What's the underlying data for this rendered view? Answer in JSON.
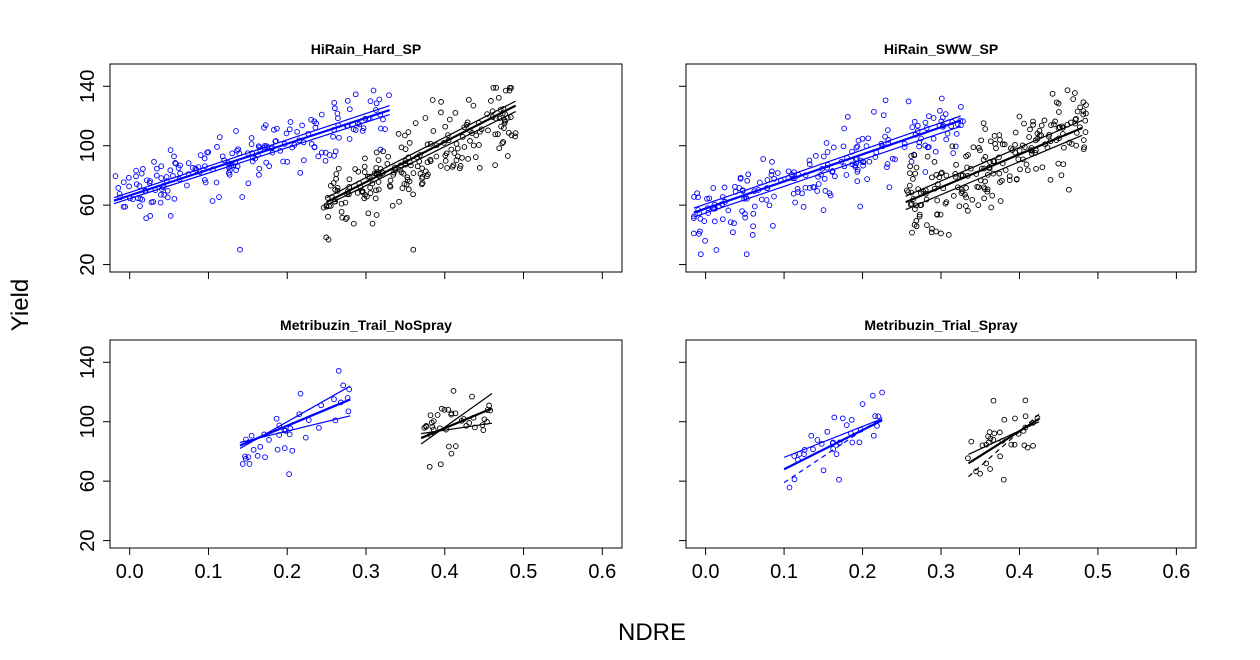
{
  "figure": {
    "xlabel": "NDRE",
    "ylabel": "Yield",
    "colors": {
      "group_low": "#0000ff",
      "group_high": "#000000"
    },
    "marker": "open-circle"
  },
  "chart_data": [
    {
      "type": "scatter",
      "title": "HiRain_Hard_SP",
      "xlim": [
        -0.025,
        0.625
      ],
      "ylim": [
        15,
        155
      ],
      "xticks": [
        "0.0",
        "0.1",
        "0.2",
        "0.3",
        "0.4",
        "0.5",
        "0.6"
      ],
      "yticks": [
        "20",
        "60",
        "100",
        "140"
      ],
      "xtick_values": [
        0.0,
        0.1,
        0.2,
        0.3,
        0.4,
        0.5,
        0.6
      ],
      "ytick_values": [
        20,
        60,
        100,
        140
      ],
      "show_xticklabels": false,
      "show_yticklabels": true,
      "grid": false,
      "series": [
        {
          "color": "#0000ff",
          "x_range": [
            -0.02,
            0.33
          ],
          "n": 190,
          "slope": 170,
          "intercept": 67,
          "noise": 10,
          "extra_points": [
            [
              0.14,
              30
            ]
          ],
          "fits": [
            {
              "x": [
                -0.02,
                0.33
              ],
              "y": [
                63,
                124
              ],
              "style": "solid",
              "width": 2.2
            },
            {
              "x": [
                -0.02,
                0.33
              ],
              "y": [
                65,
                127
              ],
              "style": "solid",
              "width": 1.2
            },
            {
              "x": [
                -0.02,
                0.33
              ],
              "y": [
                61,
                121
              ],
              "style": "solid",
              "width": 1.2
            }
          ]
        },
        {
          "color": "#000000",
          "x_range": [
            0.245,
            0.49
          ],
          "n": 210,
          "slope": 255,
          "intercept": -3,
          "noise": 12,
          "extra_points": [
            [
              0.36,
              30
            ]
          ],
          "fits": [
            {
              "x": [
                0.25,
                0.49
              ],
              "y": [
                62,
                127
              ],
              "style": "solid",
              "width": 2.2
            },
            {
              "x": [
                0.25,
                0.49
              ],
              "y": [
                60,
                123
              ],
              "style": "solid",
              "width": 1.2
            },
            {
              "x": [
                0.25,
                0.49
              ],
              "y": [
                65,
                130
              ],
              "style": "solid",
              "width": 1.2
            }
          ]
        }
      ]
    },
    {
      "type": "scatter",
      "title": "HiRain_SWW_SP",
      "xlim": [
        -0.025,
        0.625
      ],
      "ylim": [
        15,
        155
      ],
      "xticks": [
        "0.0",
        "0.1",
        "0.2",
        "0.3",
        "0.4",
        "0.5",
        "0.6"
      ],
      "yticks": [
        "20",
        "60",
        "100",
        "140"
      ],
      "xtick_values": [
        0.0,
        0.1,
        0.2,
        0.3,
        0.4,
        0.5,
        0.6
      ],
      "ytick_values": [
        20,
        60,
        100,
        140
      ],
      "show_xticklabels": false,
      "show_yticklabels": false,
      "grid": false,
      "series": [
        {
          "color": "#0000ff",
          "x_range": [
            -0.015,
            0.33
          ],
          "n": 200,
          "slope": 185,
          "intercept": 57,
          "noise": 13,
          "extra_points": [
            [
              -0.015,
              41
            ],
            [
              0.06,
              40
            ]
          ],
          "fits": [
            {
              "x": [
                -0.015,
                0.325
              ],
              "y": [
                55,
                117
              ],
              "style": "solid",
              "width": 2.2
            },
            {
              "x": [
                -0.015,
                0.325
              ],
              "y": [
                58,
                120
              ],
              "style": "solid",
              "width": 1.2
            },
            {
              "x": [
                -0.015,
                0.325
              ],
              "y": [
                52,
                113
              ],
              "style": "solid",
              "width": 1.2
            }
          ]
        },
        {
          "color": "#000000",
          "x_range": [
            0.255,
            0.485
          ],
          "n": 210,
          "slope": 235,
          "intercept": 1,
          "noise": 13,
          "extra_points": [
            [
              0.3,
              41
            ],
            [
              0.31,
              40
            ]
          ],
          "fits": [
            {
              "x": [
                0.255,
                0.48
              ],
              "y": [
                62,
                112
              ],
              "style": "solid",
              "width": 2.2
            },
            {
              "x": [
                0.255,
                0.48
              ],
              "y": [
                66,
                117
              ],
              "style": "solid",
              "width": 1.2
            },
            {
              "x": [
                0.255,
                0.48
              ],
              "y": [
                57,
                107
              ],
              "style": "solid",
              "width": 1.2
            }
          ]
        }
      ]
    },
    {
      "type": "scatter",
      "title": "Metribuzin_Trail_NoSpray",
      "xlim": [
        -0.025,
        0.625
      ],
      "ylim": [
        15,
        155
      ],
      "xticks": [
        "0.0",
        "0.1",
        "0.2",
        "0.3",
        "0.4",
        "0.5",
        "0.6"
      ],
      "yticks": [
        "20",
        "60",
        "100",
        "140"
      ],
      "xtick_values": [
        0.0,
        0.1,
        0.2,
        0.3,
        0.4,
        0.5,
        0.6
      ],
      "ytick_values": [
        20,
        60,
        100,
        140
      ],
      "show_xticklabels": true,
      "show_yticklabels": true,
      "grid": false,
      "series": [
        {
          "color": "#0000ff",
          "x_range": [
            0.14,
            0.28
          ],
          "n": 38,
          "slope": 230,
          "intercept": 50,
          "noise": 12,
          "extra_points": [],
          "fits": [
            {
              "x": [
                0.14,
                0.28
              ],
              "y": [
                84,
                115
              ],
              "style": "solid",
              "width": 2.2
            },
            {
              "x": [
                0.14,
                0.28
              ],
              "y": [
                82,
                124
              ],
              "style": "solid",
              "width": 1.2
            },
            {
              "x": [
                0.14,
                0.28
              ],
              "y": [
                86,
                104
              ],
              "style": "solid",
              "width": 1.2
            }
          ]
        },
        {
          "color": "#000000",
          "x_range": [
            0.37,
            0.46
          ],
          "n": 38,
          "slope": 240,
          "intercept": 0,
          "noise": 12,
          "extra_points": [],
          "fits": [
            {
              "x": [
                0.37,
                0.46
              ],
              "y": [
                89,
                109
              ],
              "style": "solid",
              "width": 2.2
            },
            {
              "x": [
                0.37,
                0.46
              ],
              "y": [
                85,
                119
              ],
              "style": "solid",
              "width": 1.2
            },
            {
              "x": [
                0.37,
                0.46
              ],
              "y": [
                92,
                99
              ],
              "style": "solid",
              "width": 1.2
            }
          ]
        }
      ]
    },
    {
      "type": "scatter",
      "title": "Metribuzin_Trial_Spray",
      "xlim": [
        -0.025,
        0.625
      ],
      "ylim": [
        15,
        155
      ],
      "xticks": [
        "0.0",
        "0.1",
        "0.2",
        "0.3",
        "0.4",
        "0.5",
        "0.6"
      ],
      "yticks": [
        "20",
        "60",
        "100",
        "140"
      ],
      "xtick_values": [
        0.0,
        0.1,
        0.2,
        0.3,
        0.4,
        0.5,
        0.6
      ],
      "ytick_values": [
        20,
        60,
        100,
        140
      ],
      "show_xticklabels": true,
      "show_yticklabels": false,
      "grid": false,
      "series": [
        {
          "color": "#0000ff",
          "x_range": [
            0.1,
            0.225
          ],
          "n": 34,
          "slope": 280,
          "intercept": 42,
          "noise": 11,
          "extra_points": [
            [
              0.17,
              61
            ]
          ],
          "fits": [
            {
              "x": [
                0.1,
                0.225
              ],
              "y": [
                68,
                101
              ],
              "style": "solid",
              "width": 2.2
            },
            {
              "x": [
                0.1,
                0.225
              ],
              "y": [
                76,
                102
              ],
              "style": "solid",
              "width": 1.2
            },
            {
              "x": [
                0.1,
                0.225
              ],
              "y": [
                59,
                103
              ],
              "style": "dashed",
              "width": 1.2
            }
          ]
        },
        {
          "color": "#000000",
          "x_range": [
            0.33,
            0.425
          ],
          "n": 32,
          "slope": 300,
          "intercept": -23,
          "noise": 11,
          "extra_points": [
            [
              0.38,
              61
            ]
          ],
          "fits": [
            {
              "x": [
                0.335,
                0.425
              ],
              "y": [
                72,
                102
              ],
              "style": "solid",
              "width": 2.2
            },
            {
              "x": [
                0.335,
                0.425
              ],
              "y": [
                78,
                100
              ],
              "style": "solid",
              "width": 1.2
            },
            {
              "x": [
                0.335,
                0.425
              ],
              "y": [
                63,
                105
              ],
              "style": "dashed",
              "width": 1.2
            }
          ]
        }
      ]
    }
  ]
}
